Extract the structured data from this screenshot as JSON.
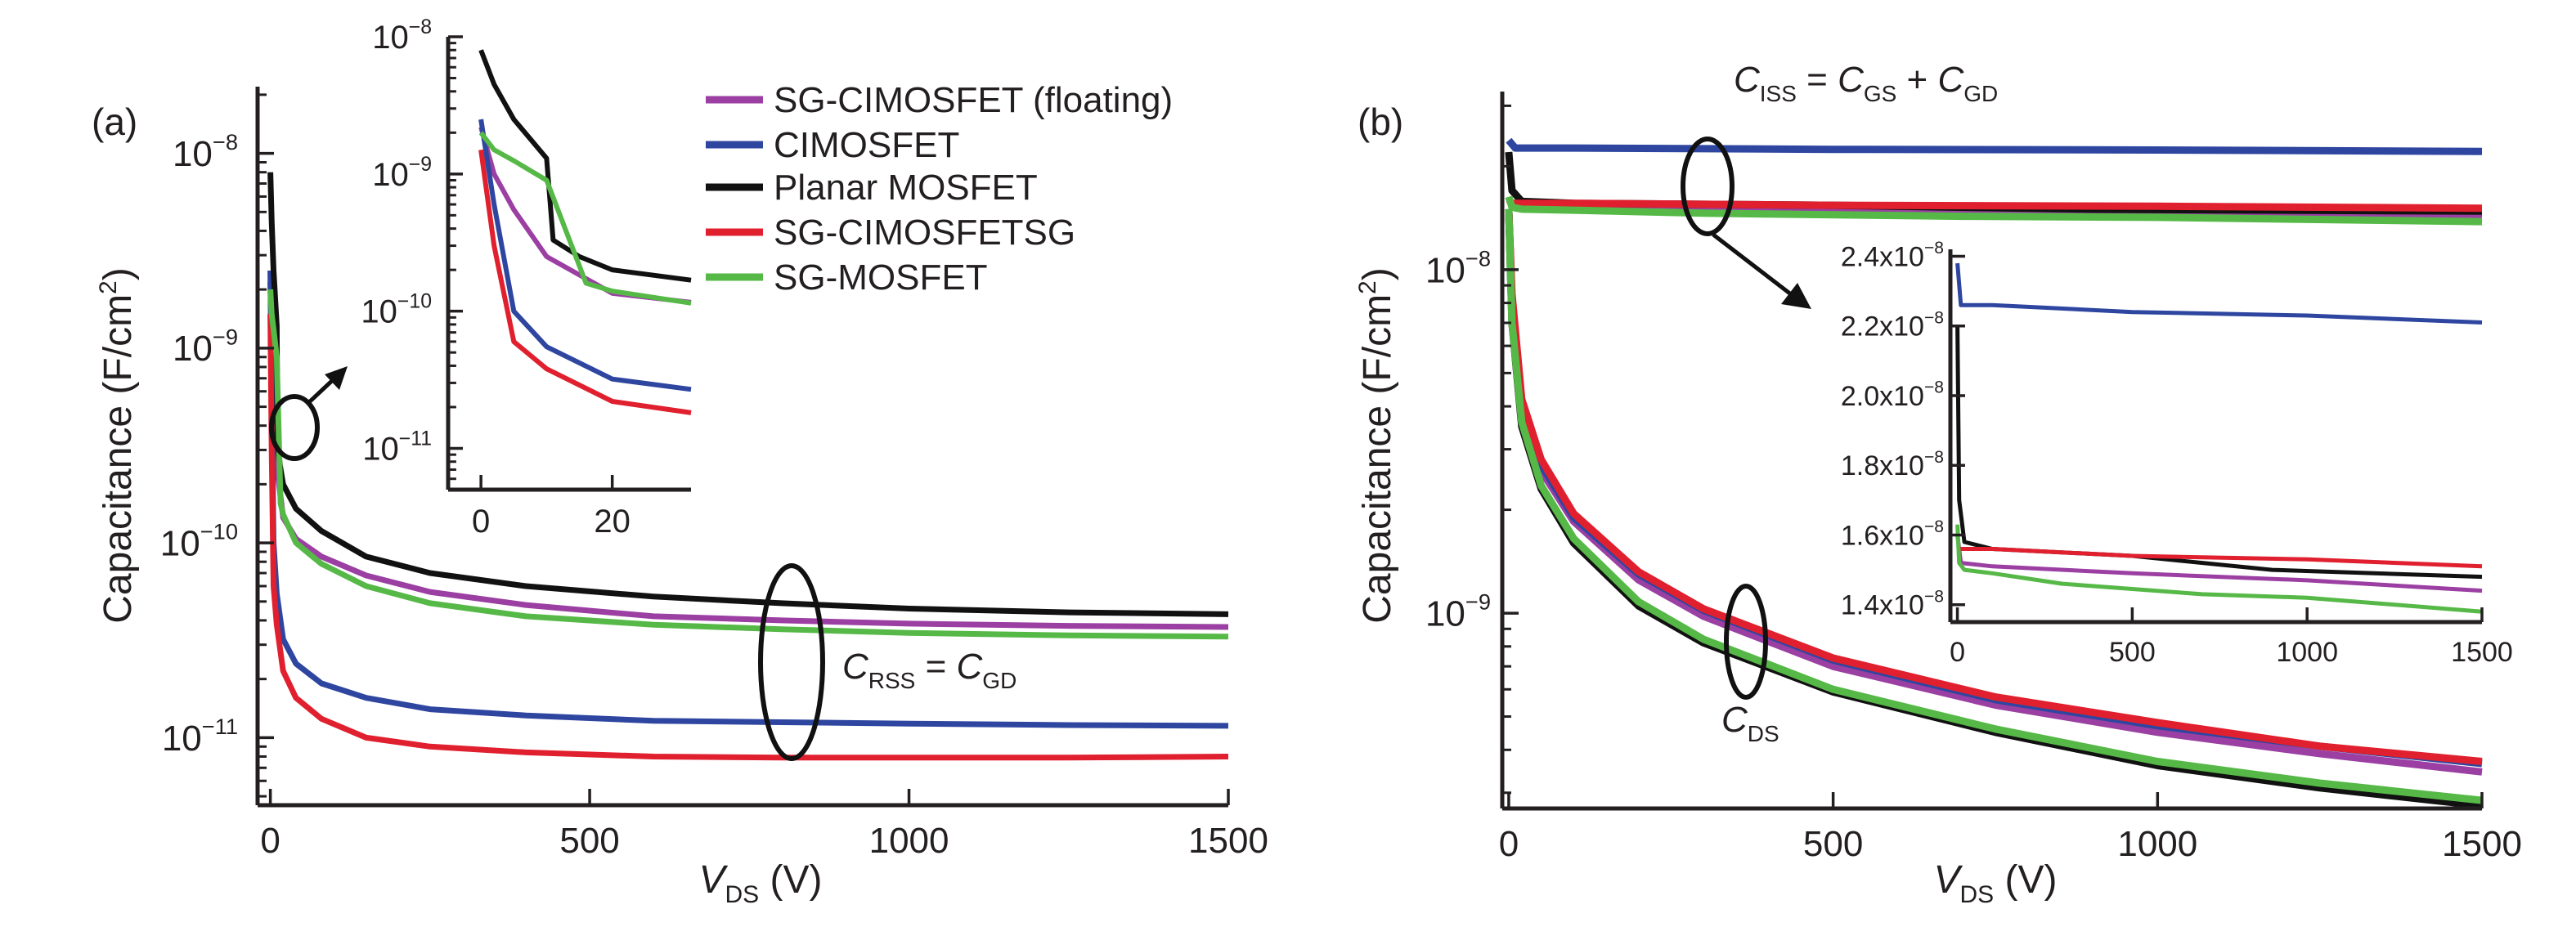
{
  "chart_data": [
    {
      "id": "a",
      "type": "line",
      "panel_label": "(a)",
      "title": "",
      "xlabel": "V_DS (V)",
      "xlabel_main": "V",
      "xlabel_sub": "DS",
      "xlabel_unit": " (V)",
      "ylabel": "Capacitance (F/cm²)",
      "ylabel_text": "Capacitance (F/cm",
      "ylabel_sup": "2",
      "ylabel_close": ")",
      "yscale": "log",
      "xlim": [
        -20,
        1500
      ],
      "ylim": [
        4.5e-12,
        2.2e-08
      ],
      "xticks": [
        0,
        500,
        1000,
        1500
      ],
      "xtick_labels": [
        "0",
        "500",
        "1000",
        "1500"
      ],
      "yticks": [
        1e-11,
        1e-10,
        1e-09,
        1e-08
      ],
      "ytick_labels": [
        {
          "base": "10",
          "exp": "−11"
        },
        {
          "base": "10",
          "exp": "−10"
        },
        {
          "base": "10",
          "exp": "−9"
        },
        {
          "base": "10",
          "exp": "−8"
        }
      ],
      "annotation": {
        "main": "C",
        "sub1": "RSS",
        "eq": " = ",
        "main2": "C",
        "sub2": "GD"
      },
      "legend": {
        "position": "top-right",
        "entries": [
          "SG-CIMOSFET (floating)",
          "CIMOSFET",
          "Planar MOSFET",
          "SG-CIMOSFETSG",
          "SG-MOSFET"
        ]
      },
      "series": [
        {
          "name": "SG-CIMOSFET (floating)",
          "color": "#9b3fa3",
          "x": [
            0,
            2,
            5,
            10,
            20,
            40,
            80,
            150,
            250,
            400,
            600,
            800,
            1000,
            1250,
            1500
          ],
          "y": [
            2.2e-09,
            1e-09,
            5.5e-10,
            2.5e-10,
            1.35e-10,
            1.05e-10,
            8.5e-11,
            6.8e-11,
            5.6e-11,
            4.8e-11,
            4.2e-11,
            4e-11,
            3.85e-11,
            3.75e-11,
            3.7e-11
          ]
        },
        {
          "name": "CIMOSFET",
          "color": "#2e46a0",
          "x": [
            0,
            2,
            5,
            10,
            20,
            40,
            80,
            150,
            250,
            400,
            600,
            800,
            1000,
            1250,
            1500
          ],
          "y": [
            2.5e-09,
            6e-10,
            1e-10,
            5.5e-11,
            3.2e-11,
            2.4e-11,
            1.9e-11,
            1.6e-11,
            1.4e-11,
            1.3e-11,
            1.22e-11,
            1.2e-11,
            1.18e-11,
            1.16e-11,
            1.15e-11
          ]
        },
        {
          "name": "Planar MOSFET",
          "color": "#111111",
          "x": [
            0,
            2,
            5,
            10,
            11,
            15,
            20,
            40,
            80,
            150,
            250,
            400,
            600,
            800,
            1000,
            1250,
            1500
          ],
          "y": [
            8e-09,
            4.5e-09,
            2.5e-09,
            1.3e-09,
            3.3e-10,
            2.5e-10,
            2e-10,
            1.5e-10,
            1.15e-10,
            8.5e-11,
            7e-11,
            6e-11,
            5.3e-11,
            4.9e-11,
            4.6e-11,
            4.4e-11,
            4.3e-11
          ]
        },
        {
          "name": "SG-CIMOSFETSG",
          "color": "#e0202e",
          "x": [
            0,
            2,
            5,
            10,
            20,
            40,
            80,
            150,
            250,
            400,
            600,
            800,
            1000,
            1250,
            1500
          ],
          "y": [
            1.5e-09,
            3e-10,
            6e-11,
            3.8e-11,
            2.2e-11,
            1.6e-11,
            1.25e-11,
            1e-11,
            9e-12,
            8.4e-12,
            8e-12,
            7.9e-12,
            7.9e-12,
            7.9e-12,
            8e-12
          ]
        },
        {
          "name": "SG-MOSFET",
          "color": "#56b947",
          "x": [
            0,
            2,
            5,
            10,
            16,
            20,
            40,
            80,
            150,
            250,
            400,
            600,
            800,
            1000,
            1250,
            1500
          ],
          "y": [
            2e-09,
            1.5e-09,
            1.25e-09,
            9e-10,
            1.6e-10,
            1.4e-10,
            1e-10,
            7.8e-11,
            6e-11,
            4.9e-11,
            4.2e-11,
            3.8e-11,
            3.6e-11,
            3.45e-11,
            3.35e-11,
            3.3e-11
          ]
        }
      ],
      "inset": {
        "xlim": [
          -5,
          32
        ],
        "ylim": [
          5e-12,
          1e-08
        ],
        "xticks": [
          0,
          20
        ],
        "xtick_labels": [
          "0",
          "20"
        ],
        "yticks": [
          1e-11,
          1e-10,
          1e-09,
          1e-08
        ],
        "ytick_labels": [
          {
            "base": "10",
            "exp": "−11"
          },
          {
            "base": "10",
            "exp": "−10"
          },
          {
            "base": "10",
            "exp": "−9"
          },
          {
            "base": "10",
            "exp": "−8"
          }
        ]
      }
    },
    {
      "id": "b",
      "type": "line",
      "panel_label": "(b)",
      "title": "",
      "xlabel": "V_DS (V)",
      "xlabel_main": "V",
      "xlabel_sub": "DS",
      "xlabel_unit": " (V)",
      "ylabel": "Capacitance (F/cm²)",
      "ylabel_text": "Capacitance (F/cm",
      "ylabel_sup": "2",
      "ylabel_close": ")",
      "yscale": "log",
      "xlim": [
        -10,
        1500
      ],
      "ylim": [
        2.7e-10,
        3.3e-08
      ],
      "xticks": [
        0,
        500,
        1000,
        1500
      ],
      "xtick_labels": [
        "0",
        "500",
        "1000",
        "1500"
      ],
      "yticks": [
        1e-09,
        1e-08
      ],
      "ytick_labels": [
        {
          "base": "10",
          "exp": "−9"
        },
        {
          "base": "10",
          "exp": "−8"
        }
      ],
      "annotation_ciss": {
        "main": "C",
        "sub1": "ISS",
        "eq": " = ",
        "main2": "C",
        "sub2": "GS",
        "plus": " + ",
        "main3": "C",
        "sub3": "GD"
      },
      "annotation_cds": {
        "main": "C",
        "sub": "DS"
      },
      "series_ciss": [
        {
          "name": "SG-CIMOSFET (floating)",
          "color": "#9b3fa3",
          "x": [
            0,
            10,
            100,
            500,
            1000,
            1500
          ],
          "y": [
            1.6e-08,
            1.52e-08,
            1.51e-08,
            1.49e-08,
            1.47e-08,
            1.44e-08
          ]
        },
        {
          "name": "CIMOSFET",
          "color": "#2e46a0",
          "x": [
            0,
            10,
            100,
            500,
            1000,
            1500
          ],
          "y": [
            2.38e-08,
            2.26e-08,
            2.26e-08,
            2.24e-08,
            2.23e-08,
            2.21e-08
          ]
        },
        {
          "name": "Planar MOSFET",
          "color": "#111111",
          "x": [
            0,
            5,
            20,
            100,
            500,
            900,
            1500
          ],
          "y": [
            2.2e-08,
            1.7e-08,
            1.58e-08,
            1.56e-08,
            1.54e-08,
            1.5e-08,
            1.48e-08
          ]
        },
        {
          "name": "SG-CIMOSFETSG",
          "color": "#e0202e",
          "x": [
            0,
            10,
            100,
            500,
            1000,
            1500
          ],
          "y": [
            1.56e-08,
            1.56e-08,
            1.56e-08,
            1.54e-08,
            1.53e-08,
            1.51e-08
          ]
        },
        {
          "name": "SG-MOSFET",
          "color": "#56b947",
          "x": [
            0,
            5,
            20,
            100,
            300,
            700,
            1000,
            1500
          ],
          "y": [
            1.63e-08,
            1.52e-08,
            1.5e-08,
            1.49e-08,
            1.46e-08,
            1.43e-08,
            1.42e-08,
            1.38e-08
          ]
        }
      ],
      "series_cds": [
        {
          "name": "SG-CIMOSFET (floating)",
          "color": "#9b3fa3",
          "x": [
            0,
            5,
            20,
            50,
            100,
            200,
            300,
            500,
            750,
            1000,
            1250,
            1500
          ],
          "y": [
            1.5e-08,
            8e-09,
            4e-09,
            2.6e-09,
            1.85e-09,
            1.25e-09,
            9.8e-10,
            7e-10,
            5.4e-10,
            4.5e-10,
            3.9e-10,
            3.45e-10
          ]
        },
        {
          "name": "CIMOSFET",
          "color": "#2e46a0",
          "x": [
            0,
            5,
            20,
            50,
            100,
            200,
            300,
            500,
            750,
            1000,
            1250,
            1500
          ],
          "y": [
            1.5e-08,
            8e-09,
            4e-09,
            2.7e-09,
            1.9e-09,
            1.3e-09,
            1.02e-09,
            7.3e-10,
            5.6e-10,
            4.7e-10,
            4.1e-10,
            3.65e-10
          ]
        },
        {
          "name": "Planar MOSFET",
          "color": "#111111",
          "x": [
            0,
            5,
            20,
            50,
            100,
            200,
            300,
            500,
            750,
            1000,
            1250,
            1500
          ],
          "y": [
            1.5e-08,
            7e-09,
            3.5e-09,
            2.3e-09,
            1.6e-09,
            1.05e-09,
            8.2e-10,
            5.9e-10,
            4.5e-10,
            3.6e-10,
            3.1e-10,
            2.75e-10
          ]
        },
        {
          "name": "SG-CIMOSFETSG",
          "color": "#e0202e",
          "x": [
            0,
            5,
            20,
            50,
            100,
            200,
            300,
            500,
            750,
            1000,
            1250,
            1500
          ],
          "y": [
            1.5e-08,
            8.5e-09,
            4.2e-09,
            2.8e-09,
            1.95e-09,
            1.32e-09,
            1.03e-09,
            7.4e-10,
            5.7e-10,
            4.8e-10,
            4.1e-10,
            3.7e-10
          ]
        },
        {
          "name": "SG-MOSFET",
          "color": "#56b947",
          "x": [
            0,
            5,
            20,
            50,
            100,
            200,
            300,
            500,
            750,
            1000,
            1250,
            1500
          ],
          "y": [
            1.5e-08,
            7e-09,
            3.6e-09,
            2.35e-09,
            1.65e-09,
            1.08e-09,
            8.4e-10,
            6e-10,
            4.6e-10,
            3.7e-10,
            3.2e-10,
            2.85e-10
          ]
        }
      ],
      "inset": {
        "xlim": [
          -20,
          1500
        ],
        "ylim": [
          1.35e-08,
          2.42e-08
        ],
        "xticks": [
          0,
          500,
          1000,
          1500
        ],
        "xtick_labels": [
          "0",
          "500",
          "1000",
          "1500"
        ],
        "yticks": [
          1.4e-08,
          1.6e-08,
          1.8e-08,
          2e-08,
          2.2e-08,
          2.4e-08
        ],
        "ytick_labels": [
          {
            "base": "1.4x10",
            "exp": "−8"
          },
          {
            "base": "1.6x10",
            "exp": "−8"
          },
          {
            "base": "1.8x10",
            "exp": "−8"
          },
          {
            "base": "2.0x10",
            "exp": "−8"
          },
          {
            "base": "2.2x10",
            "exp": "−8"
          },
          {
            "base": "2.4x10",
            "exp": "−8"
          }
        ]
      }
    }
  ]
}
